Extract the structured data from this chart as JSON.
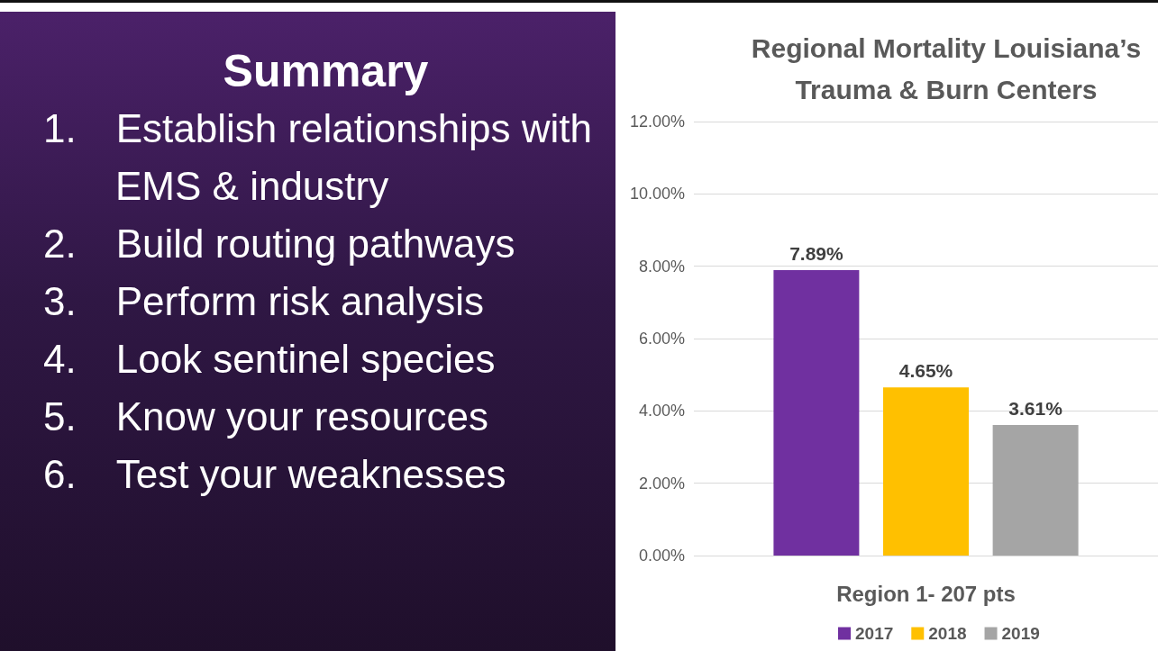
{
  "chart_data": [
    {
      "type": "other",
      "title": "Summary",
      "annotations": [
        "1. Establish relationships with EMS & industry",
        "2. Build routing pathways",
        "3. Perform risk analysis",
        "4. Look sentinel species",
        "5. Know your resources",
        "6. Test your weaknesses"
      ]
    },
    {
      "type": "bar",
      "title": "Regional Mortality Louisiana’s\nTrauma & Burn Centers",
      "categories": [
        "Region 1- 207 pts"
      ],
      "series": [
        {
          "name": "2017",
          "color": "#7030a0",
          "values": [
            7.89
          ],
          "value_labels": [
            "7.89%"
          ]
        },
        {
          "name": "2018",
          "color": "#ffc000",
          "values": [
            4.65
          ],
          "value_labels": [
            "4.65%"
          ]
        },
        {
          "name": "2019",
          "color": "#a5a5a5",
          "values": [
            3.61
          ],
          "value_labels": [
            "3.61%"
          ]
        }
      ],
      "ylim": [
        0,
        12
      ],
      "yticks": [
        {
          "value": 0,
          "label": "0.00%"
        },
        {
          "value": 2,
          "label": "2.00%"
        },
        {
          "value": 4,
          "label": "4.00%"
        },
        {
          "value": 6,
          "label": "6.00%"
        },
        {
          "value": 8,
          "label": "8.00%"
        },
        {
          "value": 10,
          "label": "10.00%"
        },
        {
          "value": 12,
          "label": "12.00%"
        }
      ],
      "grid": "y",
      "legend": "bottom"
    }
  ]
}
